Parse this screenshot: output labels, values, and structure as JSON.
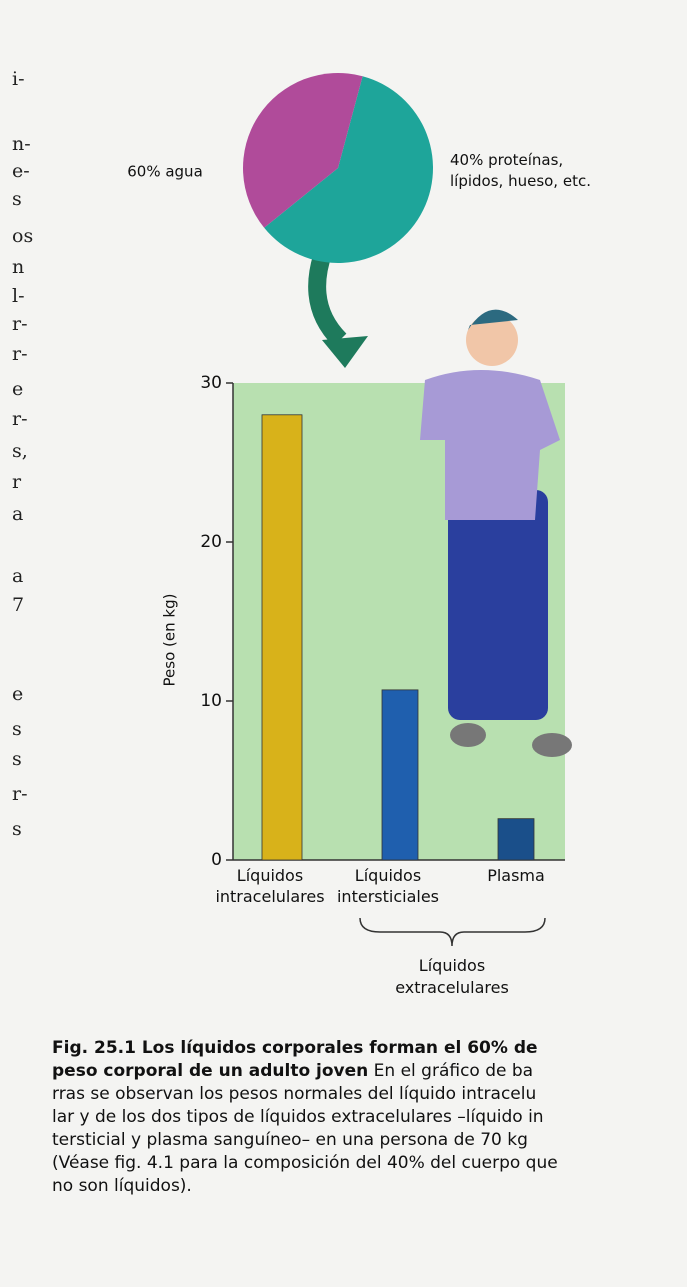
{
  "chart_data": [
    {
      "type": "pie",
      "values": [
        60,
        40
      ],
      "value_labels": [
        "60% agua",
        "40% proteínas, lípidos, hueso, etc."
      ],
      "colors": [
        "#1ea59a",
        "#b04b9a"
      ]
    },
    {
      "type": "bar",
      "categories": [
        "Líquidos intracelulares",
        "Líquidos intersticiales",
        "Plasma"
      ],
      "values": [
        28,
        10.7,
        2.6
      ],
      "colors": [
        "#d8b21a",
        "#1f5fae",
        "#1a4f8a"
      ],
      "ylabel": "Peso (en kg)",
      "ylim": [
        0,
        30
      ],
      "yticks": [
        0,
        10,
        20,
        30
      ],
      "annotation": "Líquidos extracelulares"
    }
  ],
  "caption": [
    {
      "bold": "Fig. 25.1 Los líquidos corporales forman el 60% de"
    },
    {
      "bold": "peso corporal de un adulto joven",
      "text": " En el gráfico de ba"
    },
    {
      "text": "rras se observan los pesos normales del líquido intracelu"
    },
    {
      "text": "lar y de los dos tipos de líquidos extracelulares –líquido in"
    },
    {
      "text": "tersticial y plasma sanguíneo– en una persona de 70 kg"
    },
    {
      "text": "(Véase fig. 4.1 para la composición del 40% del cuerpo que"
    },
    {
      "text": "no son líquidos)."
    }
  ],
  "margin_fragments": [
    "i-",
    "n-",
    "e-",
    "s",
    "os",
    "n",
    "l-",
    "r-",
    "r-",
    "e",
    "r-",
    "s,",
    "r",
    "a",
    "a",
    "7",
    "e",
    "s",
    "s",
    "r-",
    "s"
  ]
}
